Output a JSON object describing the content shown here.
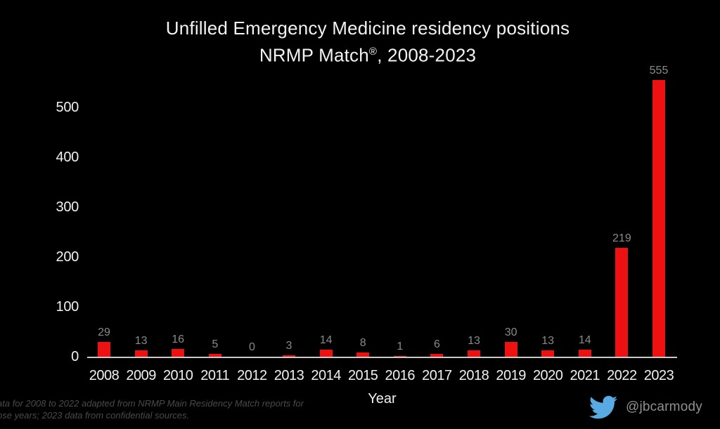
{
  "title": {
    "line1": "Unfilled Emergency Medicine residency positions",
    "line2_prefix": "NRMP Match",
    "line2_reg": "®",
    "line2_suffix": ", 2008-2023"
  },
  "chart_data": {
    "type": "bar",
    "title": "Unfilled Emergency Medicine residency positions — NRMP Match®, 2008-2023",
    "categories": [
      "2008",
      "2009",
      "2010",
      "2011",
      "2012",
      "2013",
      "2014",
      "2015",
      "2016",
      "2017",
      "2018",
      "2019",
      "2020",
      "2021",
      "2022",
      "2023"
    ],
    "values": [
      29,
      13,
      16,
      5,
      0,
      3,
      14,
      8,
      1,
      6,
      13,
      30,
      13,
      14,
      219,
      555
    ],
    "xlabel": "Year",
    "ylabel": "",
    "ylim": [
      0,
      560
    ],
    "yticks": [
      0,
      100,
      200,
      300,
      400,
      500
    ],
    "grid": false,
    "legend": "none",
    "data_labels": true
  },
  "footer": {
    "line1": "ata for 2008 to 2022 adapted from NRMP Main Residency Match reports for",
    "line2": "ose years; 2023 data from confidential sources."
  },
  "attribution": {
    "handle": "@jbcarmody",
    "icon": "twitter-bird-icon"
  },
  "colors": {
    "background": "#000000",
    "bar": "#ee1111",
    "axis_line": "#c9c9c9",
    "tick_label": "#f0f0f0",
    "data_label": "#8a8a8a",
    "title_text": "#f2f2f2",
    "footer_text": "#4a4a4a",
    "handle_text": "#8f8f8f",
    "twitter_blue": "#59a9e3"
  }
}
